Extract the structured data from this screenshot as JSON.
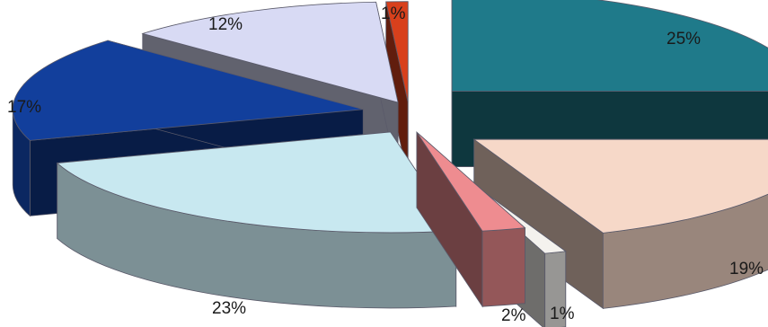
{
  "chart_data": {
    "type": "pie",
    "style": "3d-exploded",
    "slices": [
      {
        "value": 25,
        "label": "25%",
        "color": "#1f7a8a"
      },
      {
        "value": 19,
        "label": "19%",
        "color": "#f6d8c8"
      },
      {
        "value": 1,
        "label": "1%",
        "color": "#f4f2ee"
      },
      {
        "value": 2,
        "label": "2%",
        "color": "#ee8c90"
      },
      {
        "value": 23,
        "label": "23%",
        "color": "#c8e8f0"
      },
      {
        "value": 17,
        "label": "17%",
        "color": "#123f9c"
      },
      {
        "value": 12,
        "label": "12%",
        "color": "#d8daf4"
      },
      {
        "value": 1,
        "label": "1%",
        "color": "#d8401c"
      }
    ]
  }
}
